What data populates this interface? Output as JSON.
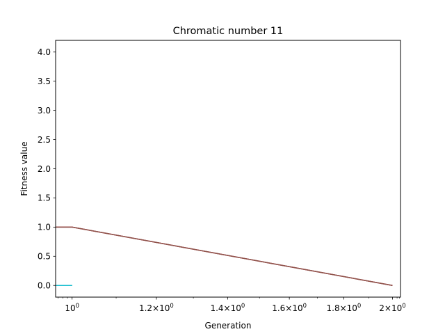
{
  "chart_data": {
    "type": "line",
    "title": "Chromatic number 11",
    "xlabel": "Generation",
    "ylabel": "Fitness value",
    "xscale": "log",
    "xlim": [
      0.965,
      2.035
    ],
    "ylim": [
      -0.2,
      4.2
    ],
    "grid": false,
    "legend": "none",
    "x_ticks": [
      {
        "value": 1.0,
        "label": "10",
        "exp": "0"
      },
      {
        "value": 1.2,
        "label": "1.2×10",
        "exp": "0"
      },
      {
        "value": 1.4,
        "label": "1.4×10",
        "exp": "0"
      },
      {
        "value": 1.6,
        "label": "1.6×10",
        "exp": "0"
      },
      {
        "value": 1.8,
        "label": "1.8×10",
        "exp": "0"
      },
      {
        "value": 2.0,
        "label": "2×10",
        "exp": "0"
      }
    ],
    "y_ticks": [
      {
        "value": 0.0,
        "label": "0.0"
      },
      {
        "value": 0.5,
        "label": "0.5"
      },
      {
        "value": 1.0,
        "label": "1.0"
      },
      {
        "value": 1.5,
        "label": "1.5"
      },
      {
        "value": 2.0,
        "label": "2.0"
      },
      {
        "value": 2.5,
        "label": "2.5"
      },
      {
        "value": 3.0,
        "label": "3.0"
      },
      {
        "value": 3.5,
        "label": "3.5"
      },
      {
        "value": 4.0,
        "label": "4.0"
      }
    ],
    "series": [
      {
        "color": "#2ca02c",
        "x": [
          0.0,
          1.0
        ],
        "y": [
          0.0,
          0.0
        ]
      },
      {
        "color": "#1f77b4",
        "x": [
          0.0,
          1.0
        ],
        "y": [
          0.0,
          0.0
        ]
      },
      {
        "color": "#17becf",
        "x": [
          0.0,
          1.0
        ],
        "y": [
          0.0,
          0.0
        ]
      },
      {
        "color": "#9467bd",
        "x": [
          0.0,
          1.0,
          2.0
        ],
        "y": [
          1.0,
          1.0,
          0.0
        ]
      },
      {
        "color": "#d62728",
        "x": [
          0.0,
          1.0,
          2.0
        ],
        "y": [
          1.0,
          1.0,
          0.0
        ]
      },
      {
        "color": "#8c564b",
        "x": [
          0.0,
          1.0,
          2.0
        ],
        "y": [
          1.0,
          1.0,
          0.0
        ]
      }
    ]
  }
}
